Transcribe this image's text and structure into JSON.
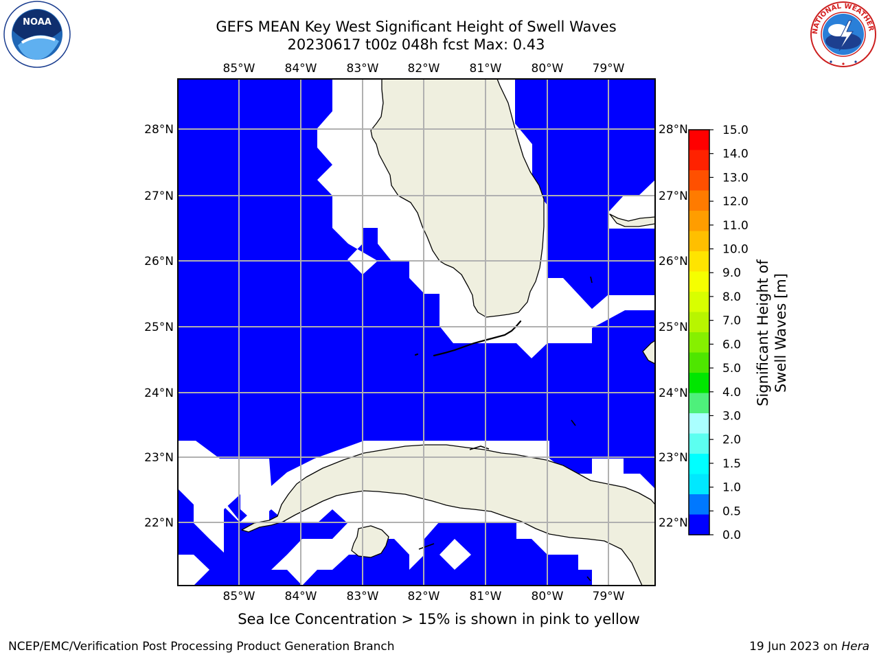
{
  "header": {
    "title_line1": "GEFS MEAN Key West Significant Height of Swell Waves",
    "title_line2": "20230617 t00z 048h fcst   Max: 0.43"
  },
  "logos": {
    "left": {
      "name": "noaa-logo",
      "text": "NOAA",
      "ring_text": "NATIONAL OCEANIC AND ATMOSPHERIC ADMINISTRATION · U.S. DEPARTMENT OF COMMERCE"
    },
    "right": {
      "name": "nws-logo",
      "ring_text": "NATIONAL WEATHER SERVICE"
    }
  },
  "map": {
    "lon_labels": [
      "85°W",
      "84°W",
      "83°W",
      "82°W",
      "81°W",
      "80°W",
      "79°W"
    ],
    "lat_labels": [
      "28°N",
      "27°N",
      "26°N",
      "25°N",
      "24°N",
      "23°N",
      "22°N"
    ],
    "lon_range": [
      -86.0,
      -78.25
    ],
    "lat_range": [
      21.0,
      28.75
    ],
    "water_color": "#0000ff",
    "land_color": "#efefdf",
    "grid_color": "#b0b0b0"
  },
  "colorbar": {
    "label": "Significant Height of Swell Waves [m]",
    "ticks": [
      "15.0",
      "14.0",
      "13.0",
      "12.0",
      "11.0",
      "10.0",
      "9.0",
      "8.0",
      "7.0",
      "6.0",
      "5.0",
      "4.0",
      "3.0",
      "2.0",
      "1.5",
      "1.0",
      "0.5",
      "0.0"
    ],
    "colors": [
      "#ff0000",
      "#ff2200",
      "#ff5000",
      "#ff7b00",
      "#ff9d00",
      "#ffbf00",
      "#ffe400",
      "#f5ff00",
      "#d8ff00",
      "#b8f500",
      "#86f000",
      "#4ee600",
      "#00e600",
      "#4ef07b",
      "#aaffff",
      "#5cfff0",
      "#00ffff",
      "#00e8ff",
      "#0078ff",
      "#0000ff"
    ]
  },
  "notes": {
    "sea_ice": "Sea Ice Concentration > 15% is shown in pink to yellow",
    "credit": "NCEP/EMC/Verification Post Processing Product Generation Branch",
    "date_prefix": "19 Jun 2023 on ",
    "machine": "Hera"
  }
}
